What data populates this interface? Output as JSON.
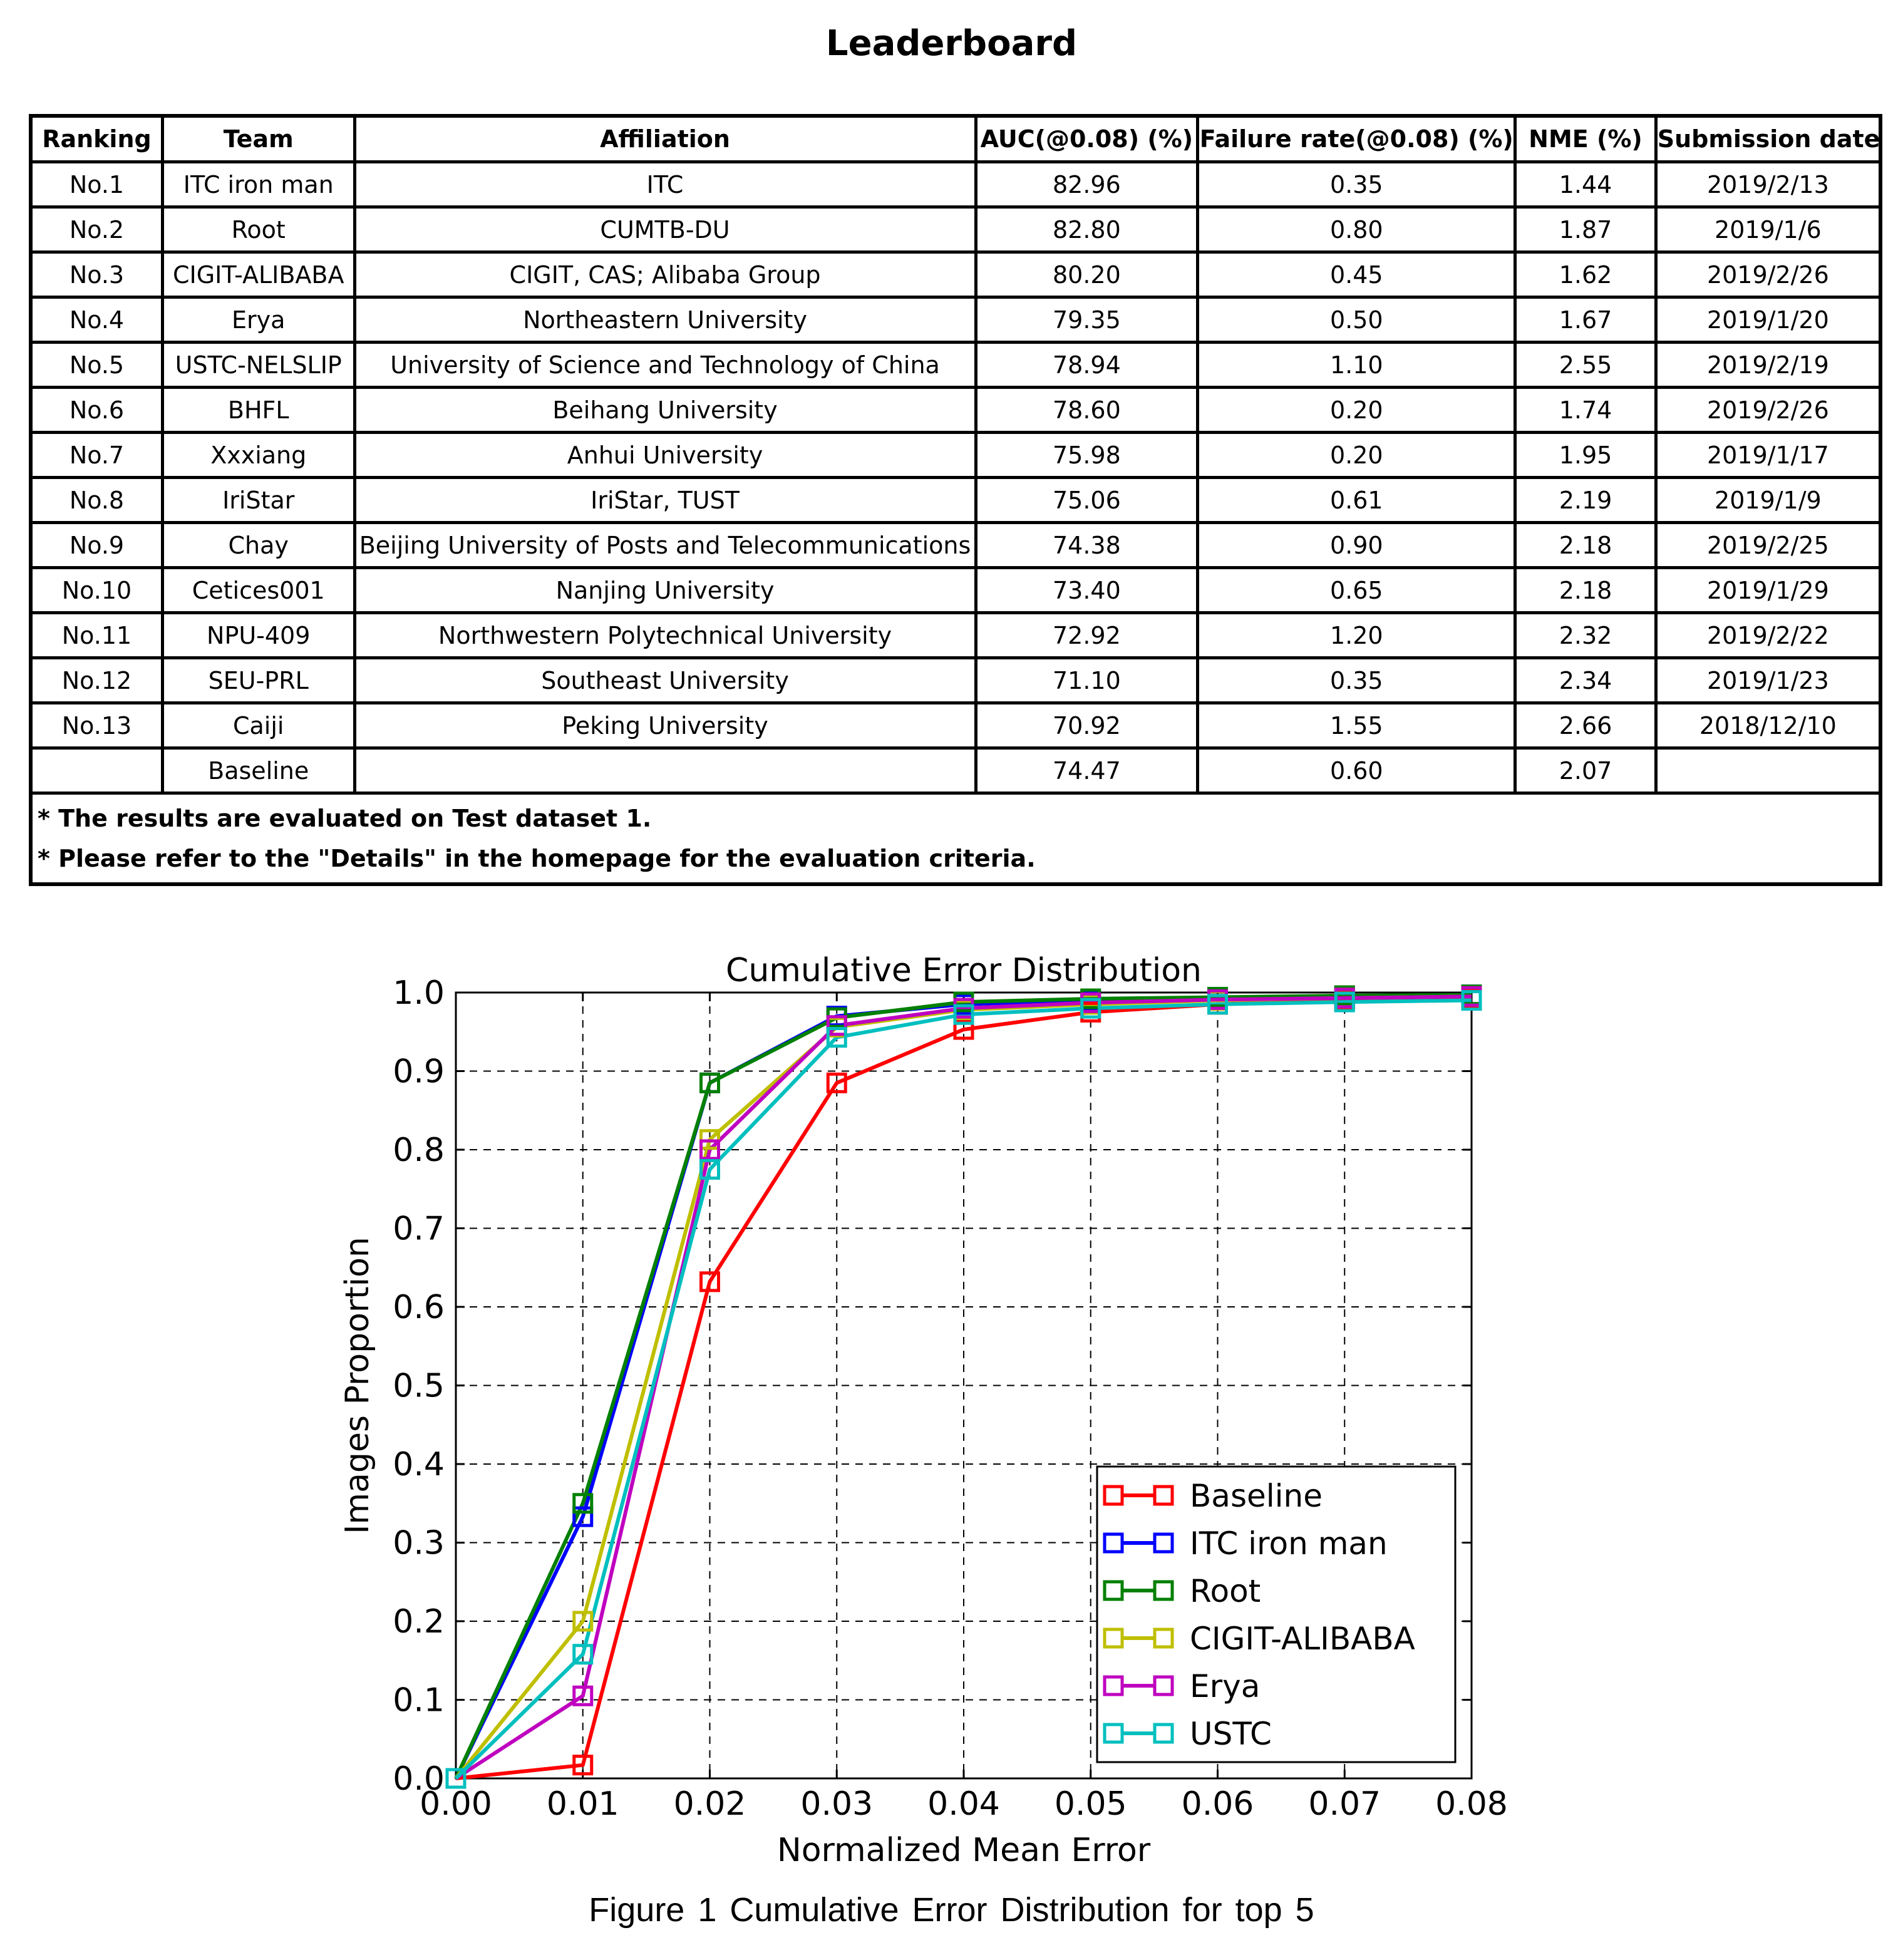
{
  "title": "Leaderboard",
  "table": {
    "headers": [
      "Ranking",
      "Team",
      "Affiliation",
      "AUC(@0.08) (%)",
      "Failure rate(@0.08) (%)",
      "NME (%)",
      "Submission date"
    ],
    "rows": [
      [
        "No.1",
        "ITC iron man",
        "ITC",
        "82.96",
        "0.35",
        "1.44",
        "2019/2/13"
      ],
      [
        "No.2",
        "Root",
        "CUMTB-DU",
        "82.80",
        "0.80",
        "1.87",
        "2019/1/6"
      ],
      [
        "No.3",
        "CIGIT-ALIBABA",
        "CIGIT, CAS; Alibaba Group",
        "80.20",
        "0.45",
        "1.62",
        "2019/2/26"
      ],
      [
        "No.4",
        "Erya",
        "Northeastern University",
        "79.35",
        "0.50",
        "1.67",
        "2019/1/20"
      ],
      [
        "No.5",
        "USTC-NELSLIP",
        "University of Science and Technology of China",
        "78.94",
        "1.10",
        "2.55",
        "2019/2/19"
      ],
      [
        "No.6",
        "BHFL",
        "Beihang University",
        "78.60",
        "0.20",
        "1.74",
        "2019/2/26"
      ],
      [
        "No.7",
        "Xxxiang",
        "Anhui University",
        "75.98",
        "0.20",
        "1.95",
        "2019/1/17"
      ],
      [
        "No.8",
        "IriStar",
        "IriStar, TUST",
        "75.06",
        "0.61",
        "2.19",
        "2019/1/9"
      ],
      [
        "No.9",
        "Chay",
        "Beijing University of Posts and Telecommunications",
        "74.38",
        "0.90",
        "2.18",
        "2019/2/25"
      ],
      [
        "No.10",
        "Cetices001",
        "Nanjing University",
        "73.40",
        "0.65",
        "2.18",
        "2019/1/29"
      ],
      [
        "No.11",
        "NPU-409",
        "Northwestern Polytechnical University",
        "72.92",
        "1.20",
        "2.32",
        "2019/2/22"
      ],
      [
        "No.12",
        "SEU-PRL",
        "Southeast University",
        "71.10",
        "0.35",
        "2.34",
        "2019/1/23"
      ],
      [
        "No.13",
        "Caiji",
        "Peking University",
        "70.92",
        "1.55",
        "2.66",
        "2018/12/10"
      ],
      [
        "",
        "Baseline",
        "",
        "74.47",
        "0.60",
        "2.07",
        ""
      ]
    ],
    "notes": [
      "* The results are evaluated on Test dataset 1.",
      "* Please refer to the \"Details\" in the homepage for the evaluation criteria."
    ]
  },
  "chart_data": {
    "type": "line",
    "title": "Cumulative Error Distribution",
    "xlabel": "Normalized Mean Error",
    "ylabel": "Images Proportion",
    "xlim": [
      0.0,
      0.08
    ],
    "ylim": [
      0.0,
      1.0
    ],
    "x_ticks": [
      "0.00",
      "0.01",
      "0.02",
      "0.03",
      "0.04",
      "0.05",
      "0.06",
      "0.07",
      "0.08"
    ],
    "y_ticks": [
      "0.0",
      "0.1",
      "0.2",
      "0.3",
      "0.4",
      "0.5",
      "0.6",
      "0.7",
      "0.8",
      "0.9",
      "1.0"
    ],
    "grid": true,
    "legend_position": "lower-right",
    "x": [
      0.0,
      0.01,
      0.02,
      0.03,
      0.04,
      0.05,
      0.06,
      0.07,
      0.08
    ],
    "series": [
      {
        "name": "Baseline",
        "color": "#ff0000",
        "values": [
          0.0,
          0.017,
          0.632,
          0.885,
          0.953,
          0.975,
          0.985,
          0.99,
          0.993
        ]
      },
      {
        "name": "ITC iron man",
        "color": "#0000ff",
        "values": [
          0.0,
          0.333,
          0.885,
          0.97,
          0.985,
          0.99,
          0.993,
          0.995,
          0.997
        ]
      },
      {
        "name": "Root",
        "color": "#008000",
        "values": [
          0.0,
          0.35,
          0.885,
          0.968,
          0.988,
          0.992,
          0.994,
          0.996,
          0.997
        ]
      },
      {
        "name": "CIGIT-ALIBABA",
        "color": "#bfbf00",
        "values": [
          0.0,
          0.2,
          0.813,
          0.956,
          0.978,
          0.985,
          0.99,
          0.993,
          0.995
        ]
      },
      {
        "name": "Erya",
        "color": "#bf00bf",
        "values": [
          0.0,
          0.105,
          0.8,
          0.958,
          0.98,
          0.987,
          0.991,
          0.993,
          0.995
        ]
      },
      {
        "name": "USTC",
        "color": "#00bfbf",
        "values": [
          0.0,
          0.158,
          0.775,
          0.943,
          0.972,
          0.98,
          0.985,
          0.988,
          0.99
        ]
      }
    ]
  },
  "caption": "Figure 1   Cumulative Error Distribution for top 5"
}
